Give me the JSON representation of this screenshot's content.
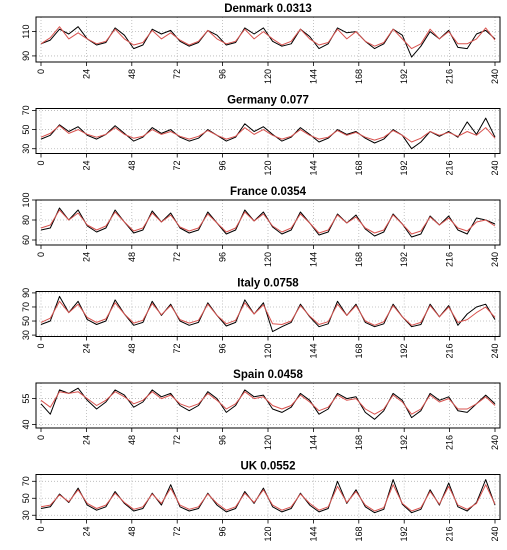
{
  "chart_data": [
    {
      "type": "line",
      "title": "Denmark 0.0313",
      "x_ticks": [
        0,
        24,
        48,
        72,
        96,
        120,
        144,
        168,
        192,
        216,
        240
      ],
      "y_ticks": [
        90,
        110
      ],
      "ylim": [
        85,
        122
      ],
      "xlim": [
        0,
        240
      ],
      "grid": true,
      "series": [
        {
          "color": "#000000",
          "values": [
            100,
            103,
            112,
            108,
            114,
            104,
            99,
            101,
            113,
            107,
            96,
            99,
            112,
            108,
            111,
            102,
            98,
            101,
            111,
            107,
            99,
            101,
            113,
            108,
            113,
            102,
            98,
            100,
            112,
            106,
            96,
            100,
            113,
            109,
            110,
            102,
            96,
            100,
            112,
            107,
            89,
            98,
            110,
            104,
            111,
            97,
            96,
            108,
            111,
            104
          ]
        },
        {
          "color": "#d9534f",
          "values": [
            100,
            105,
            114,
            104,
            109,
            104,
            100,
            102,
            112,
            104,
            99,
            101,
            111,
            104,
            109,
            103,
            99,
            102,
            111,
            104,
            100,
            102,
            112,
            104,
            110,
            104,
            99,
            102,
            112,
            104,
            99,
            101,
            112,
            104,
            110,
            102,
            98,
            101,
            112,
            104,
            96,
            100,
            112,
            104,
            110,
            100,
            100,
            104,
            113,
            103
          ]
        }
      ]
    },
    {
      "type": "line",
      "title": "Germany 0.077",
      "x_ticks": [
        0,
        24,
        48,
        72,
        96,
        120,
        144,
        168,
        192,
        216,
        240
      ],
      "y_ticks": [
        30,
        50,
        70
      ],
      "ylim": [
        25,
        72
      ],
      "xlim": [
        0,
        240
      ],
      "grid": true,
      "series": [
        {
          "color": "#000000",
          "values": [
            40,
            44,
            55,
            48,
            53,
            44,
            40,
            45,
            54,
            46,
            38,
            42,
            52,
            46,
            50,
            42,
            38,
            41,
            50,
            44,
            38,
            42,
            56,
            48,
            53,
            45,
            38,
            42,
            52,
            45,
            37,
            41,
            50,
            45,
            48,
            41,
            36,
            40,
            50,
            44,
            30,
            37,
            48,
            43,
            48,
            42,
            58,
            45,
            62,
            42
          ]
        },
        {
          "color": "#d9534f",
          "values": [
            42,
            46,
            54,
            46,
            50,
            45,
            42,
            45,
            52,
            45,
            41,
            43,
            50,
            45,
            48,
            43,
            40,
            43,
            49,
            44,
            40,
            43,
            52,
            45,
            50,
            44,
            40,
            43,
            50,
            44,
            40,
            42,
            49,
            44,
            47,
            42,
            39,
            42,
            49,
            44,
            37,
            41,
            48,
            44,
            47,
            43,
            48,
            44,
            52,
            41
          ]
        }
      ]
    },
    {
      "type": "line",
      "title": "France 0.0354",
      "x_ticks": [
        0,
        24,
        48,
        72,
        96,
        120,
        144,
        168,
        192,
        216,
        240
      ],
      "y_ticks": [
        60,
        80,
        100
      ],
      "ylim": [
        55,
        100
      ],
      "xlim": [
        0,
        240
      ],
      "grid": true,
      "series": [
        {
          "color": "#000000",
          "values": [
            70,
            72,
            92,
            80,
            90,
            74,
            68,
            72,
            90,
            78,
            67,
            70,
            89,
            78,
            87,
            72,
            67,
            70,
            88,
            77,
            66,
            70,
            90,
            79,
            88,
            73,
            66,
            70,
            88,
            77,
            65,
            68,
            86,
            77,
            85,
            71,
            64,
            68,
            86,
            76,
            63,
            66,
            84,
            75,
            84,
            70,
            66,
            82,
            80,
            76
          ]
        },
        {
          "color": "#d9534f",
          "values": [
            72,
            75,
            90,
            80,
            87,
            75,
            70,
            74,
            88,
            78,
            69,
            72,
            87,
            78,
            85,
            73,
            69,
            72,
            86,
            77,
            68,
            72,
            88,
            79,
            86,
            74,
            68,
            72,
            86,
            77,
            67,
            70,
            85,
            77,
            83,
            72,
            67,
            70,
            85,
            76,
            66,
            69,
            83,
            75,
            82,
            72,
            69,
            78,
            80,
            74
          ]
        }
      ]
    },
    {
      "type": "line",
      "title": "Italy 0.0758",
      "x_ticks": [
        0,
        24,
        48,
        72,
        96,
        120,
        144,
        168,
        192,
        216,
        240
      ],
      "y_ticks": [
        30,
        50,
        70,
        90
      ],
      "ylim": [
        28,
        92
      ],
      "xlim": [
        0,
        240
      ],
      "grid": true,
      "series": [
        {
          "color": "#000000",
          "values": [
            45,
            50,
            85,
            62,
            78,
            52,
            45,
            50,
            80,
            60,
            44,
            48,
            78,
            58,
            74,
            50,
            44,
            48,
            76,
            58,
            43,
            48,
            80,
            60,
            76,
            35,
            42,
            48,
            74,
            56,
            42,
            46,
            78,
            58,
            74,
            48,
            42,
            46,
            74,
            56,
            42,
            45,
            74,
            56,
            72,
            44,
            60,
            70,
            74,
            52
          ]
        },
        {
          "color": "#d9534f",
          "values": [
            48,
            54,
            78,
            62,
            74,
            55,
            48,
            53,
            76,
            60,
            47,
            51,
            75,
            59,
            72,
            52,
            47,
            51,
            74,
            58,
            46,
            51,
            76,
            60,
            73,
            46,
            45,
            50,
            72,
            57,
            45,
            49,
            74,
            58,
            72,
            50,
            44,
            49,
            72,
            56,
            44,
            48,
            72,
            56,
            70,
            48,
            52,
            62,
            70,
            55
          ]
        }
      ]
    },
    {
      "type": "line",
      "title": "Spain 0.0458",
      "x_ticks": [
        0,
        24,
        48,
        72,
        96,
        120,
        144,
        168,
        192,
        216,
        240
      ],
      "y_ticks": [
        40,
        55
      ],
      "ylim": [
        38,
        64
      ],
      "xlim": [
        0,
        240
      ],
      "grid": true,
      "series": [
        {
          "color": "#000000",
          "values": [
            52,
            46,
            60,
            58,
            61,
            54,
            49,
            53,
            60,
            57,
            50,
            53,
            60,
            56,
            58,
            51,
            48,
            51,
            59,
            55,
            47,
            51,
            60,
            56,
            57,
            49,
            47,
            50,
            58,
            54,
            46,
            49,
            58,
            55,
            56,
            47,
            43,
            48,
            58,
            54,
            44,
            48,
            58,
            54,
            56,
            48,
            47,
            52,
            57,
            52
          ]
        },
        {
          "color": "#d9534f",
          "values": [
            54,
            50,
            59,
            58,
            59,
            55,
            51,
            54,
            59,
            56,
            52,
            54,
            59,
            55,
            57,
            52,
            50,
            52,
            58,
            54,
            49,
            52,
            59,
            55,
            56,
            51,
            49,
            51,
            57,
            53,
            48,
            50,
            57,
            54,
            55,
            49,
            46,
            49,
            57,
            53,
            46,
            49,
            57,
            53,
            55,
            49,
            49,
            52,
            56,
            51
          ]
        }
      ]
    },
    {
      "type": "line",
      "title": "UK 0.0552",
      "x_ticks": [
        0,
        24,
        48,
        72,
        96,
        120,
        144,
        168,
        192,
        216,
        240
      ],
      "y_ticks": [
        30,
        50,
        70
      ],
      "ylim": [
        25,
        78
      ],
      "xlim": [
        0,
        240
      ],
      "grid": true,
      "series": [
        {
          "color": "#000000",
          "values": [
            38,
            40,
            55,
            45,
            62,
            42,
            36,
            40,
            58,
            44,
            35,
            38,
            56,
            42,
            66,
            40,
            35,
            38,
            56,
            42,
            34,
            38,
            58,
            44,
            62,
            40,
            34,
            38,
            56,
            42,
            34,
            38,
            70,
            44,
            60,
            40,
            33,
            37,
            72,
            43,
            33,
            37,
            60,
            42,
            68,
            40,
            35,
            45,
            72,
            42
          ]
        },
        {
          "color": "#d9534f",
          "values": [
            40,
            42,
            54,
            46,
            60,
            44,
            38,
            42,
            56,
            45,
            37,
            40,
            55,
            44,
            62,
            42,
            37,
            40,
            55,
            44,
            36,
            40,
            56,
            45,
            60,
            42,
            36,
            40,
            55,
            44,
            36,
            40,
            64,
            45,
            58,
            42,
            35,
            39,
            66,
            44,
            35,
            39,
            58,
            43,
            64,
            42,
            37,
            44,
            66,
            43
          ]
        }
      ]
    }
  ]
}
